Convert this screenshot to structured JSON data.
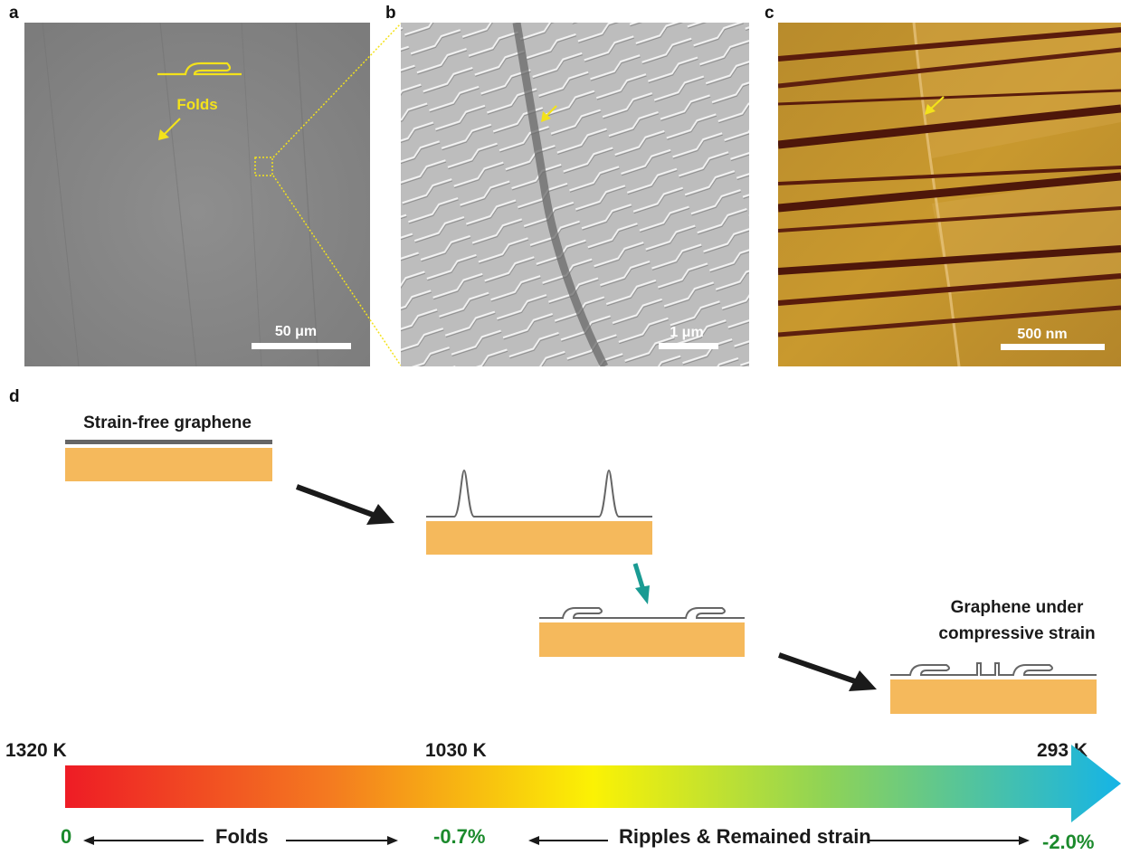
{
  "panels": {
    "a": {
      "letter": "a",
      "scale_bar": "50 μm",
      "annotation": "Folds"
    },
    "b": {
      "letter": "b",
      "scale_bar": "1 μm"
    },
    "c": {
      "letter": "c",
      "scale_bar": "500 nm"
    },
    "d": {
      "letter": "d"
    }
  },
  "schematic": {
    "stage_start_label": "Strain-free graphene",
    "stage_end_label_line1": "Graphene under",
    "stage_end_label_line2": "compressive strain"
  },
  "temperature_bar": {
    "t_start": "1320 K",
    "t_mid": "1030 K",
    "t_end": "293 K",
    "strain_start": "0",
    "strain_mid": "-0.7%",
    "strain_end": "-2.0%",
    "regime1": "Folds",
    "regime2": "Ripples & Remained strain"
  },
  "colors": {
    "substrate": "#f5b95c",
    "graphene_line": "#666666",
    "annotation_yellow": "#f3e21b",
    "teal_arrow": "#1a9b93",
    "strain_green": "#1b8a2c"
  }
}
